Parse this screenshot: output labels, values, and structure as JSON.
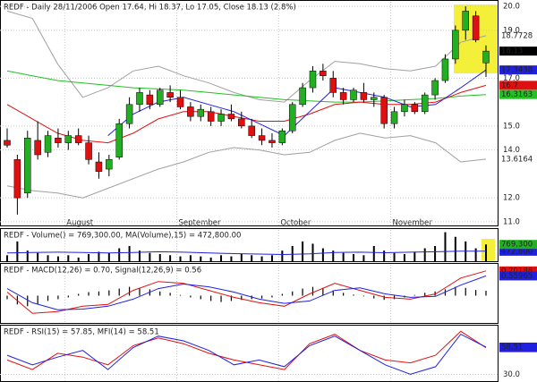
{
  "chart_data": [
    {
      "type": "candlestick",
      "title": "REDF - Daily 28/11/2006 Open 17.64, Hi 18.37, Lo 17.05, Close 18.13 (2.8%)",
      "categories": [
        null,
        null,
        null,
        null,
        null,
        null,
        "August",
        null,
        null,
        null,
        null,
        null,
        null,
        null,
        null,
        null,
        null,
        "September",
        null,
        null,
        null,
        null,
        null,
        null,
        null,
        null,
        null,
        "October",
        null,
        null,
        null,
        null,
        null,
        null,
        null,
        null,
        null,
        null,
        "November",
        null,
        null,
        null,
        null,
        null,
        null,
        null,
        null,
        null
      ],
      "open": [
        14.4,
        13.6,
        12.2,
        14.4,
        13.9,
        14.5,
        14.3,
        14.6,
        14.3,
        13.5,
        13.2,
        13.7,
        15.1,
        15.9,
        16.3,
        15.9,
        16.4,
        16.2,
        15.8,
        15.4,
        15.6,
        15.2,
        15.5,
        15.3,
        15.0,
        14.6,
        14.4,
        14.3,
        14.8,
        15.9,
        16.6,
        17.3,
        17.0,
        16.4,
        16.1,
        16.4,
        16.1,
        16.2,
        15.1,
        15.6,
        15.9,
        15.6,
        16.3,
        16.9,
        17.8,
        19.0,
        19.6,
        17.64
      ],
      "high": [
        14.9,
        13.8,
        14.8,
        15.2,
        14.8,
        14.9,
        14.8,
        14.9,
        14.6,
        13.9,
        13.8,
        15.3,
        16.2,
        16.6,
        16.5,
        16.6,
        16.7,
        16.5,
        16.0,
        15.9,
        15.8,
        15.7,
        15.9,
        15.6,
        15.3,
        14.9,
        14.7,
        14.9,
        16.0,
        16.8,
        17.5,
        17.6,
        17.3,
        16.6,
        16.6,
        16.8,
        16.4,
        16.3,
        15.8,
        16.1,
        16.0,
        16.4,
        17.0,
        18.0,
        19.2,
        20.0,
        19.8,
        18.37
      ],
      "low": [
        14.1,
        11.3,
        12.0,
        13.6,
        13.7,
        14.1,
        14.0,
        14.2,
        13.4,
        12.8,
        12.9,
        13.6,
        14.9,
        15.6,
        15.7,
        15.8,
        16.0,
        15.7,
        15.2,
        15.2,
        15.0,
        15.0,
        15.2,
        14.9,
        14.5,
        14.2,
        14.1,
        14.2,
        14.7,
        15.8,
        16.4,
        16.9,
        16.2,
        15.9,
        16.0,
        16.0,
        15.8,
        14.9,
        14.9,
        15.4,
        15.5,
        15.5,
        16.1,
        16.8,
        17.6,
        18.6,
        18.5,
        17.05
      ],
      "close": [
        14.2,
        12.0,
        14.5,
        13.8,
        14.6,
        14.3,
        14.6,
        14.3,
        13.6,
        13.1,
        13.6,
        15.1,
        15.9,
        16.4,
        15.9,
        16.5,
        16.2,
        15.8,
        15.4,
        15.7,
        15.2,
        15.5,
        15.3,
        15.0,
        14.6,
        14.4,
        14.3,
        14.8,
        15.9,
        16.6,
        17.3,
        17.1,
        16.4,
        16.1,
        16.5,
        16.1,
        16.2,
        15.1,
        15.6,
        15.9,
        15.6,
        16.3,
        16.9,
        17.8,
        19.0,
        19.8,
        18.6,
        18.13
      ],
      "up_color": "#22b022",
      "down_color": "#e01010",
      "close_label_color": "#000000",
      "ylim": [
        10.81,
        20.19
      ],
      "yticks": [
        {
          "value": 11,
          "label": "11.0"
        },
        {
          "value": 12,
          "label": "12.0"
        },
        {
          "value": 14,
          "label": "14.0"
        },
        {
          "value": 15,
          "label": "15.0"
        },
        {
          "value": 17,
          "label": "17.0"
        },
        {
          "value": 19,
          "label": "19.0"
        },
        {
          "value": 20,
          "label": "20.0"
        }
      ],
      "grid": true,
      "lines": [
        {
          "color": "#a0a0a0",
          "boxed": false,
          "values": [
            19.8,
            19.5,
            17.6,
            16.2,
            16.6,
            17.3,
            17.5,
            17.1,
            16.8,
            16.4,
            16.1,
            16.0,
            16.9,
            17.7,
            17.6,
            17.4,
            17.3,
            17.5,
            18.5,
            18.7728
          ]
        },
        {
          "color": "#a0a0a0",
          "boxed": false,
          "values": [
            12.5,
            12.3,
            12.2,
            12.0,
            12.4,
            12.8,
            13.2,
            13.5,
            13.9,
            14.1,
            14.0,
            13.8,
            13.9,
            14.4,
            14.7,
            14.5,
            14.6,
            14.3,
            13.5,
            13.6164
          ]
        },
        {
          "color": "#22c022",
          "boxed": true,
          "values": [
            17.3,
            17.1,
            16.9,
            16.8,
            16.7,
            16.6,
            16.55,
            16.5,
            16.4,
            16.3,
            16.2,
            16.1,
            16.05,
            16.0,
            16.0,
            16.05,
            16.1,
            16.15,
            16.25,
            16.3163
          ]
        },
        {
          "color": "#e01010",
          "boxed": true,
          "values": [
            15.9,
            15.3,
            14.7,
            14.4,
            14.3,
            14.7,
            15.3,
            15.6,
            15.6,
            15.4,
            15.2,
            15.2,
            15.5,
            15.9,
            16.0,
            15.9,
            15.9,
            16.0,
            16.4,
            16.7
          ]
        },
        {
          "color": "#2020e0",
          "boxed": true,
          "values": [
            null,
            null,
            null,
            null,
            14.6,
            15.5,
            16.0,
            16.2,
            15.9,
            15.6,
            15.1,
            14.6,
            15.6,
            16.6,
            16.4,
            16.2,
            15.8,
            15.9,
            16.6,
            17.3438
          ]
        }
      ]
    },
    {
      "type": "bar",
      "title": "REDF - Volume() = 769,300.00, MA(Volume),15) = 472,800.00",
      "values": [
        300000,
        900000,
        500000,
        400000,
        300000,
        250000,
        300000,
        200000,
        350000,
        450000,
        400000,
        600000,
        700000,
        500000,
        400000,
        350000,
        300000,
        250000,
        300000,
        250000,
        200000,
        300000,
        250000,
        350000,
        300000,
        250000,
        300000,
        500000,
        700000,
        900000,
        800000,
        600000,
        500000,
        400000,
        350000,
        300000,
        700000,
        500000,
        400000,
        350000,
        450000,
        600000,
        700000,
        1300000,
        1100000,
        900000,
        600000,
        769300
      ],
      "value_labels": [
        null,
        null,
        null,
        null,
        null,
        null,
        null,
        null,
        null,
        null,
        null,
        null,
        null,
        null,
        null,
        null,
        null,
        null,
        null,
        null,
        null,
        null,
        null,
        null,
        null,
        null,
        null,
        null,
        null,
        null,
        null,
        null,
        null,
        null,
        null,
        null,
        null,
        null,
        null,
        null,
        null,
        null,
        null,
        null,
        null,
        null,
        null,
        "769,300"
      ],
      "color": "#000000",
      "label_color": "#22b022",
      "ylim": [
        0,
        1400000
      ],
      "lines": [
        {
          "color": "#2020e0",
          "boxed": true,
          "values": [
            400000,
            420000,
            430000,
            420000,
            400000,
            420000,
            450000,
            430000,
            400000,
            370000,
            350000,
            330000,
            360000,
            420000,
            430000,
            410000,
            430000,
            450000,
            480000,
            472800
          ],
          "value_labels": [
            null,
            null,
            null,
            null,
            null,
            null,
            null,
            null,
            null,
            null,
            null,
            null,
            null,
            null,
            null,
            null,
            null,
            null,
            null,
            "472,800"
          ]
        }
      ]
    },
    {
      "type": "line",
      "title": "REDF - MACD(12,26) = 0.70, Signal(12,26,9) = 0.56",
      "ylim": [
        -0.8,
        0.875
      ],
      "histogram": {
        "color": "#000000",
        "values": [
          -0.1,
          -0.25,
          -0.3,
          -0.25,
          -0.15,
          -0.1,
          -0.05,
          0.05,
          0.1,
          0.12,
          0.15,
          0.2,
          0.25,
          0.22,
          0.18,
          0.12,
          0.08,
          0.02,
          -0.05,
          -0.1,
          -0.15,
          -0.18,
          -0.15,
          -0.12,
          -0.1,
          -0.08,
          -0.05,
          0.05,
          0.12,
          0.2,
          0.25,
          0.22,
          0.15,
          0.08,
          0.03,
          -0.02,
          -0.08,
          -0.12,
          -0.1,
          -0.05,
          0.02,
          0.08,
          0.12,
          0.18,
          0.25,
          0.22,
          0.16,
          0.14
        ]
      },
      "lines": [
        {
          "color": "#e01010",
          "boxed": true,
          "values": [
            0.1,
            -0.5,
            -0.45,
            -0.3,
            -0.25,
            0.15,
            0.4,
            0.35,
            0.15,
            -0.05,
            -0.2,
            -0.3,
            0.05,
            0.35,
            0.15,
            -0.05,
            -0.1,
            0.05,
            0.5,
            0.70188
          ]
        },
        {
          "color": "#2020e0",
          "boxed": true,
          "values": [
            0.2,
            -0.2,
            -0.4,
            -0.38,
            -0.3,
            -0.1,
            0.2,
            0.33,
            0.25,
            0.1,
            -0.1,
            -0.22,
            -0.15,
            0.15,
            0.22,
            0.05,
            -0.05,
            -0.02,
            0.3,
            0.55965
          ]
        }
      ]
    },
    {
      "type": "line",
      "title": "REDF - RSI(15) = 57.85, MFI(14) = 58.51",
      "ylim": [
        22,
        80
      ],
      "yticks": [
        {
          "value": 30,
          "label": "30.0"
        }
      ],
      "grid": true,
      "lines": [
        {
          "color": "#e01010",
          "boxed": true,
          "values": [
            45,
            35,
            52,
            48,
            40,
            60,
            68,
            62,
            52,
            45,
            40,
            35,
            62,
            72,
            55,
            45,
            42,
            50,
            75,
            57.85
          ]
        },
        {
          "color": "#2020e0",
          "boxed": true,
          "values": [
            50,
            40,
            48,
            55,
            35,
            58,
            70,
            65,
            55,
            40,
            45,
            38,
            60,
            70,
            55,
            40,
            30,
            38,
            72,
            58.51
          ]
        }
      ]
    }
  ]
}
